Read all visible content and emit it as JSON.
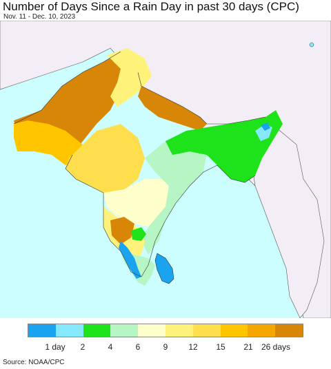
{
  "header": {
    "title": "Number of Days Since a Rain Day in past 30 days (CPC)",
    "date_range": "Nov. 11 - Dec. 10, 2023"
  },
  "legend": {
    "colors": [
      "#1aa3ee",
      "#86e8fc",
      "#1ee21a",
      "#b6f5c4",
      "#ffffcc",
      "#fff27a",
      "#fede4d",
      "#ffc600",
      "#f6a600",
      "#d88608"
    ],
    "labels": [
      "1 day",
      "2",
      "4",
      "6",
      "9",
      "12",
      "15",
      "21",
      "26 days"
    ]
  },
  "footer": {
    "source": "Source: NOAA/CPC"
  }
}
